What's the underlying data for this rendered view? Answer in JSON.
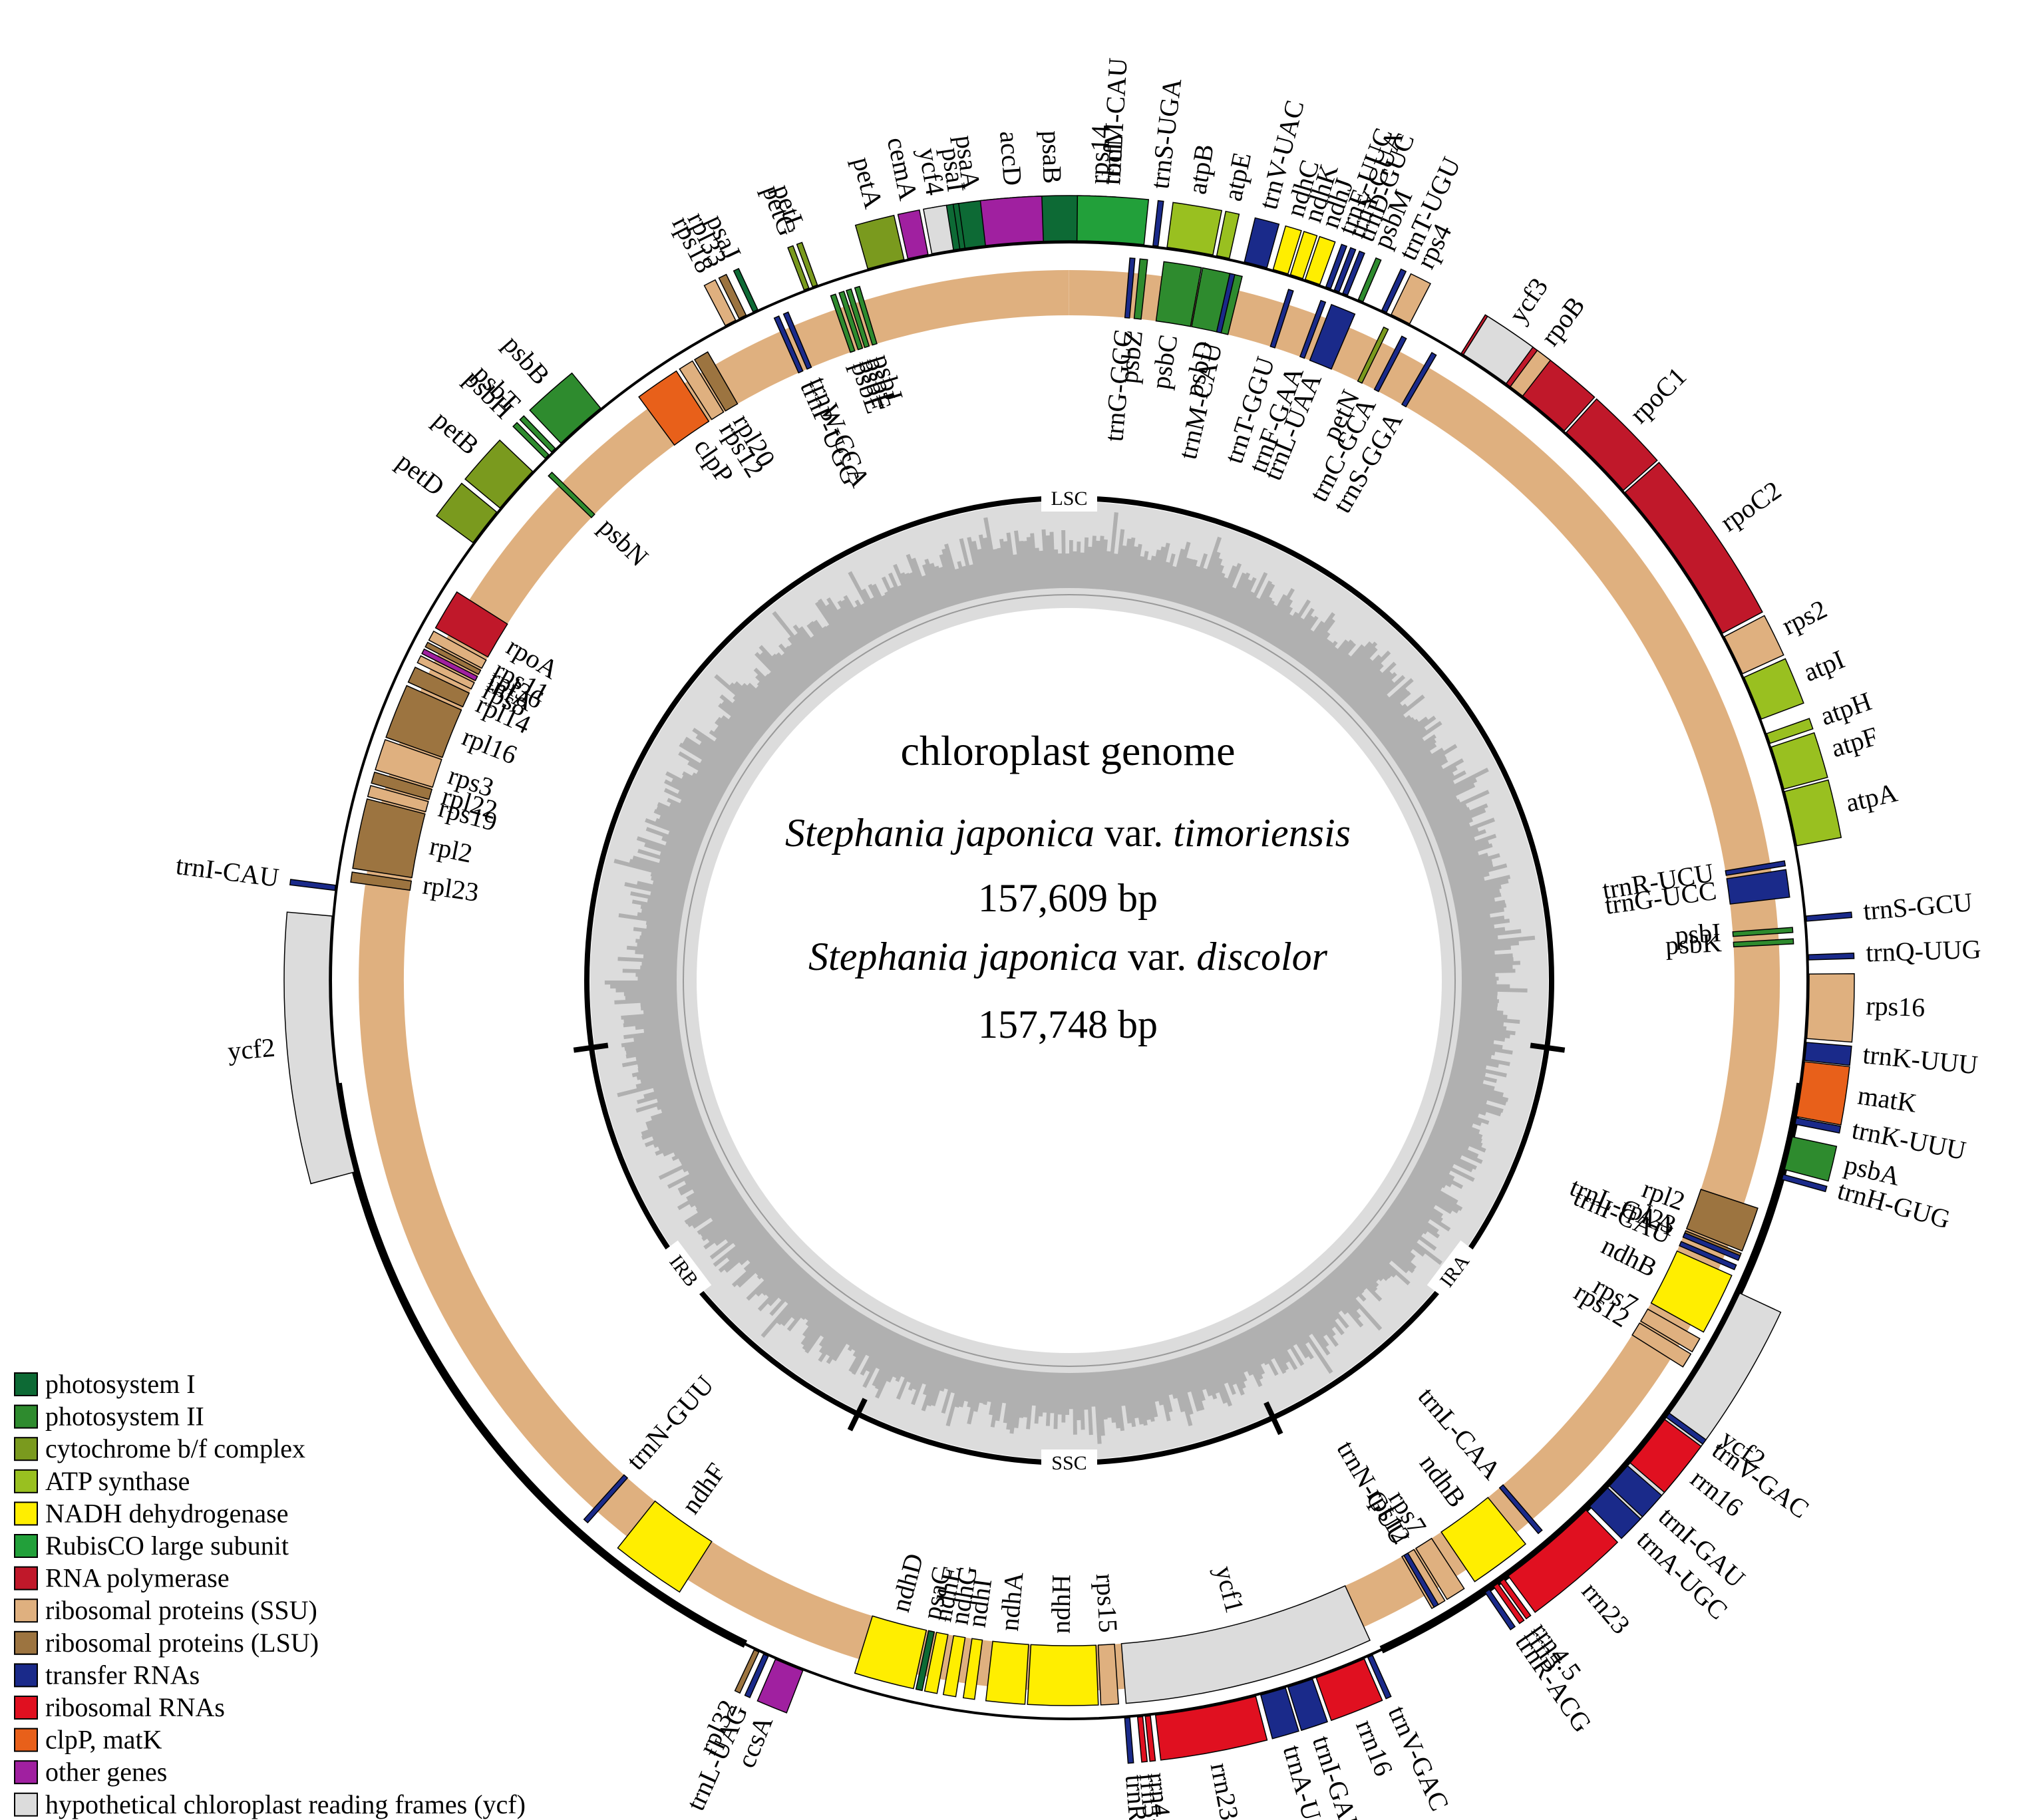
{
  "center": {
    "title": "chloroplast genome",
    "species1": {
      "genus": "Stephania japonica",
      "rank": "var.",
      "variety": "timoriensis"
    },
    "size1": "157,609 bp",
    "species2": {
      "genus": "Stephania japonica",
      "rank": "var.",
      "variety": "discolor"
    },
    "size2": "157,748 bp"
  },
  "regions": [
    {
      "id": "lsc",
      "label": "LSC",
      "angle": 0
    },
    {
      "id": "ira",
      "label": "IRA",
      "angle": 127
    },
    {
      "id": "ssc",
      "label": "SSC",
      "angle": 180
    },
    {
      "id": "irb",
      "label": "IRB",
      "angle": 233
    }
  ],
  "boundaries": [
    98,
    155,
    206,
    262
  ],
  "categories": {
    "ps1": {
      "name": "photosystem I",
      "color": "#0d6a35"
    },
    "ps2": {
      "name": "photosystem II",
      "color": "#2e8b2e"
    },
    "cyt": {
      "name": "cytochrome b/f complex",
      "color": "#7a9a1e"
    },
    "atp": {
      "name": "ATP synthase",
      "color": "#99c020"
    },
    "ndh": {
      "name": "NADH dehydrogenase",
      "color": "#ffee00"
    },
    "rbc": {
      "name": "RubisCO large subunit",
      "color": "#22a03a"
    },
    "rpo": {
      "name": "RNA polymerase",
      "color": "#c0182a"
    },
    "ssu": {
      "name": "ribosomal proteins (SSU)",
      "color": "#dfb07f"
    },
    "lsu": {
      "name": "ribosomal proteins (LSU)",
      "color": "#9c7440"
    },
    "trn": {
      "name": "transfer RNAs",
      "color": "#1a2a8a"
    },
    "rrn": {
      "name": "ribosomal RNAs",
      "color": "#e01020"
    },
    "clp": {
      "name": "clpP, matK",
      "color": "#e8601a"
    },
    "oth": {
      "name": "other genes",
      "color": "#a020a0"
    },
    "ycf": {
      "name": "hypothetical chloroplast reading frames (ycf)",
      "color": "#dcdcdc"
    }
  },
  "legend_order": [
    "ps1",
    "ps2",
    "cyt",
    "atp",
    "ndh",
    "rbc",
    "rpo",
    "ssu",
    "lsu",
    "trn",
    "rrn",
    "clp",
    "oth",
    "ycf"
  ],
  "genes": [
    {
      "name": "psaA",
      "cat": "ps1",
      "start": 350,
      "end": 355.5,
      "side": "out"
    },
    {
      "name": "psaB",
      "cat": "ps1",
      "start": 355.7,
      "end": 361.5,
      "side": "out"
    },
    {
      "name": "rps14",
      "cat": "ssu",
      "start": 361.9,
      "end": 362.7,
      "side": "out"
    },
    {
      "name": "trnfM-CAU",
      "cat": "trn",
      "start": 363.0,
      "end": 363.4,
      "side": "out"
    },
    {
      "name": "trnG-GCC",
      "cat": "trn",
      "start": 364.8,
      "end": 365.2,
      "side": "in"
    },
    {
      "name": "psbZ",
      "cat": "ps2",
      "start": 365.6,
      "end": 366.2,
      "side": "in"
    },
    {
      "name": "trnS-UGA",
      "cat": "trn",
      "start": 366.5,
      "end": 366.9,
      "side": "out"
    },
    {
      "name": "psbC",
      "cat": "ps2",
      "start": 367.5,
      "end": 370.5,
      "side": "in"
    },
    {
      "name": "psbD",
      "cat": "ps2",
      "start": 370.6,
      "end": 373.8,
      "side": "in"
    },
    {
      "name": "trnT-GGU",
      "cat": "trn",
      "start": 377.6,
      "end": 378.0,
      "side": "in"
    },
    {
      "name": "trnE-UUC",
      "cat": "trn",
      "start": 380.3,
      "end": 380.7,
      "side": "out"
    },
    {
      "name": "trnY-GUA",
      "cat": "trn",
      "start": 381.0,
      "end": 381.4,
      "side": "out"
    },
    {
      "name": "trnD-GUC",
      "cat": "trn",
      "start": 381.7,
      "end": 382.1,
      "side": "out"
    },
    {
      "name": "psbM",
      "cat": "ps2",
      "start": 383.0,
      "end": 383.4,
      "side": "out"
    },
    {
      "name": "petN",
      "cat": "cyt",
      "start": 385.7,
      "end": 386.1,
      "side": "in"
    },
    {
      "name": "trnC-GCA",
      "cat": "trn",
      "start": 387.3,
      "end": 387.7,
      "side": "in"
    },
    {
      "name": "rpoB",
      "cat": "rpo",
      "start": 392,
      "end": 402,
      "side": "out"
    },
    {
      "name": "rpoC1",
      "cat": "rpo",
      "start": 402.2,
      "end": 408.5,
      "side": "out"
    },
    {
      "name": "rpoC2",
      "cat": "rpo",
      "start": 408.7,
      "end": 422,
      "side": "out"
    },
    {
      "name": "rps2",
      "cat": "ssu",
      "start": 422.3,
      "end": 425.5,
      "side": "out"
    },
    {
      "name": "atpI",
      "cat": "atp",
      "start": 425.8,
      "end": 429.3,
      "side": "out"
    },
    {
      "name": "atpH",
      "cat": "atp",
      "start": 430.5,
      "end": 431.3,
      "side": "out"
    },
    {
      "name": "atpF",
      "cat": "atp",
      "start": 431.6,
      "end": 435,
      "side": "out"
    },
    {
      "name": "atpA",
      "cat": "atp",
      "start": 435.2,
      "end": 439.5,
      "side": "out"
    },
    {
      "name": "trnR-UCU",
      "cat": "trn",
      "start": 440.5,
      "end": 440.9,
      "side": "in"
    },
    {
      "name": "trnG-UCC",
      "cat": "trn",
      "start": 441.2,
      "end": 443.4,
      "side": "in"
    },
    {
      "name": "psbI",
      "cat": "ps2",
      "start": 445.8,
      "end": 446.2,
      "side": "in"
    },
    {
      "name": "psbK",
      "cat": "ps2",
      "start": 446.7,
      "end": 447.1,
      "side": "in"
    },
    {
      "name": "trnS-GCU",
      "cat": "trn",
      "start": 445.0,
      "end": 445.4,
      "side": "out"
    },
    {
      "name": "trnQ-UUG",
      "cat": "trn",
      "start": 448.0,
      "end": 448.4,
      "side": "out"
    },
    {
      "name": "rps16",
      "cat": "ssu",
      "start": 449.5,
      "end": 454.5,
      "side": "out"
    },
    {
      "name": "trnK-UUU",
      "cat": "trn",
      "start": 454.8,
      "end": 456.2,
      "side": "out"
    },
    {
      "name": "matK",
      "cat": "clp",
      "start": 456.3,
      "end": 460.6,
      "side": "out"
    },
    {
      "name": "trnK-UUU",
      "cat": "trn",
      "start": 460.7,
      "end": 461.2,
      "side": "out"
    },
    {
      "name": "psbA",
      "cat": "ps2",
      "start": 462.2,
      "end": 464.8,
      "side": "out"
    },
    {
      "name": "trnH-GUG",
      "cat": "trn",
      "start": 465.2,
      "end": 465.6,
      "side": "out"
    },
    {
      "name": "rpl2",
      "cat": "lsu",
      "start": 468.3,
      "end": 471.9,
      "side": "in"
    },
    {
      "name": "rpl23",
      "cat": "lsu",
      "start": 472.1,
      "end": 472.6,
      "side": "in"
    },
    {
      "name": "trnI-CAU",
      "cat": "trn",
      "start": 473.1,
      "end": 473.5,
      "side": "in"
    },
    {
      "name": "ycf2",
      "cat": "ycf",
      "start": 475,
      "end": 495,
      "side": "out"
    },
    {
      "name": "trnL-CAA",
      "cat": "trn",
      "start": 499.3,
      "end": 499.7,
      "side": "in"
    },
    {
      "name": "ndhB",
      "cat": "ndh",
      "start": 501,
      "end": 506,
      "side": "in"
    },
    {
      "name": "rps7",
      "cat": "ssu",
      "start": 507,
      "end": 508.6,
      "side": "in"
    },
    {
      "name": "rps12",
      "cat": "ssu",
      "start": 508.8,
      "end": 510,
      "side": "in"
    },
    {
      "name": "trnV-GAC",
      "cat": "trn",
      "start": 515.8,
      "end": 516.2,
      "side": "out"
    },
    {
      "name": "rrn16",
      "cat": "rrn",
      "start": 516.5,
      "end": 520.5,
      "side": "out"
    },
    {
      "name": "trnI-GAU",
      "cat": "trn",
      "start": 520.8,
      "end": 522.8,
      "side": "out"
    },
    {
      "name": "trnA-UGC",
      "cat": "trn",
      "start": 523.0,
      "end": 525.0,
      "side": "out"
    },
    {
      "name": "rrn23",
      "cat": "rrn",
      "start": 525.4,
      "end": 533.3,
      "side": "out"
    },
    {
      "name": "rrn4.5",
      "cat": "rrn",
      "start": 533.7,
      "end": 534.1,
      "side": "out"
    },
    {
      "name": "rrn5",
      "cat": "rrn",
      "start": 534.3,
      "end": 534.7,
      "side": "out"
    },
    {
      "name": "trnR-ACG",
      "cat": "trn",
      "start": 535.3,
      "end": 535.7,
      "side": "out"
    },
    {
      "name": "trnN-GUU",
      "cat": "trn",
      "start": 149.4,
      "end": 149.8,
      "side": "in"
    },
    {
      "name": "ycf1",
      "cat": "ycf",
      "start": 155.5,
      "end": 175.5,
      "side": "in"
    },
    {
      "name": "rps15",
      "cat": "ssu",
      "start": 176.1,
      "end": 177.5,
      "side": "in"
    },
    {
      "name": "ndhH",
      "cat": "ndh",
      "start": 177.7,
      "end": 183.3,
      "side": "in"
    },
    {
      "name": "ndhA",
      "cat": "ndh",
      "start": 183.5,
      "end": 186.6,
      "side": "in"
    },
    {
      "name": "ndhI",
      "cat": "ndh",
      "start": 187.5,
      "end": 188.4,
      "side": "in"
    },
    {
      "name": "ndhG",
      "cat": "ndh",
      "start": 189,
      "end": 190,
      "side": "in"
    },
    {
      "name": "ndhE",
      "cat": "ndh",
      "start": 190.5,
      "end": 191.5,
      "side": "in"
    },
    {
      "name": "psaC",
      "cat": "ps1",
      "start": 191.7,
      "end": 192.2,
      "side": "in"
    },
    {
      "name": "ndhD",
      "cat": "ndh",
      "start": 192.4,
      "end": 197.2,
      "side": "in"
    },
    {
      "name": "ccsA",
      "cat": "oth",
      "start": 201.1,
      "end": 203.4,
      "side": "out"
    },
    {
      "name": "trnL-UAG",
      "cat": "trn",
      "start": 204.0,
      "end": 204.4,
      "side": "out"
    },
    {
      "name": "rpl32",
      "cat": "lsu",
      "start": 204.8,
      "end": 205.2,
      "side": "out"
    },
    {
      "name": "ndhF",
      "cat": "ndh",
      "start": 212.5,
      "end": 218.5,
      "side": "in"
    },
    {
      "name": "trnN-GUU",
      "cat": "trn",
      "start": 221.6,
      "end": 222.0,
      "side": "in"
    },
    {
      "name": "trnR-ACG",
      "cat": "trn",
      "start": 145.4,
      "end": 145.8,
      "side": "out"
    },
    {
      "name": "rrn5",
      "cat": "rrn",
      "start": 144.6,
      "end": 145.0,
      "side": "out"
    },
    {
      "name": "rrn4.5",
      "cat": "rrn",
      "start": 144.0,
      "end": 144.4,
      "side": "out"
    },
    {
      "name": "rrn23",
      "cat": "rrn",
      "start": 135.7,
      "end": 143.6,
      "side": "out"
    },
    {
      "name": "trnA-UGC",
      "cat": "trn",
      "start": 133.3,
      "end": 135.3,
      "side": "out"
    },
    {
      "name": "trnI-GAU",
      "cat": "trn",
      "start": 131.0,
      "end": 133.1,
      "side": "out"
    },
    {
      "name": "rrn16",
      "cat": "rrn",
      "start": 126.4,
      "end": 130.7,
      "side": "out"
    },
    {
      "name": "trnV-GAC",
      "cat": "trn",
      "start": 125.8,
      "end": 126.2,
      "side": "out"
    },
    {
      "name": "rps12",
      "cat": "ssu",
      "start": 121,
      "end": 122.2,
      "side": "in"
    },
    {
      "name": "rps7",
      "cat": "ssu",
      "start": 119.6,
      "end": 120.8,
      "side": "in"
    },
    {
      "name": "ndhB",
      "cat": "ndh",
      "start": 114,
      "end": 119,
      "side": "in"
    },
    {
      "name": "trnL-CAA",
      "cat": "trn",
      "start": 112.3,
      "end": 112.7,
      "side": "in"
    },
    {
      "name": "ycf2",
      "cat": "ycf",
      "start": 255,
      "end": 275,
      "side": "out"
    },
    {
      "name": "trnI-CAU",
      "cat": "trn",
      "start": 277.0,
      "end": 277.4,
      "side": "out"
    },
    {
      "name": "rpl23",
      "cat": "lsu",
      "start": 277.8,
      "end": 278.6,
      "side": "in"
    },
    {
      "name": "rpl2",
      "cat": "lsu",
      "start": 278.9,
      "end": 284.5,
      "side": "in"
    },
    {
      "name": "rps19",
      "cat": "ssu",
      "start": 284.7,
      "end": 285.6,
      "side": "in"
    },
    {
      "name": "rpl22",
      "cat": "lsu",
      "start": 285.8,
      "end": 286.7,
      "side": "in"
    },
    {
      "name": "rps3",
      "cat": "ssu",
      "start": 286.9,
      "end": 289.4,
      "side": "in"
    },
    {
      "name": "rpl16",
      "cat": "lsu",
      "start": 289.6,
      "end": 294.0,
      "side": "in"
    },
    {
      "name": "rpl14",
      "cat": "lsu",
      "start": 294.3,
      "end": 295.6,
      "side": "in"
    },
    {
      "name": "rps8",
      "cat": "ssu",
      "start": 296.0,
      "end": 296.6,
      "side": "in"
    },
    {
      "name": "infA",
      "cat": "oth",
      "start": 296.8,
      "end": 297.2,
      "side": "in"
    },
    {
      "name": "rpl36",
      "cat": "lsu",
      "start": 297.4,
      "end": 297.8,
      "side": "in"
    },
    {
      "name": "rps11",
      "cat": "ssu",
      "start": 298.0,
      "end": 298.8,
      "side": "in"
    },
    {
      "name": "rpoA",
      "cat": "rpo",
      "start": 299.1,
      "end": 302.4,
      "side": "in"
    },
    {
      "name": "petD",
      "cat": "cyt",
      "start": 306.3,
      "end": 309.3,
      "side": "out"
    },
    {
      "name": "petB",
      "cat": "cyt",
      "start": 309.7,
      "end": 313.5,
      "side": "out"
    },
    {
      "name": "psbN",
      "cat": "ps2",
      "start": 314.1,
      "end": 314.5,
      "side": "in"
    },
    {
      "name": "psbH",
      "cat": "ps2",
      "start": 314.9,
      "end": 315.3,
      "side": "out"
    },
    {
      "name": "psbT",
      "cat": "ps2",
      "start": 315.6,
      "end": 316.0,
      "side": "out"
    },
    {
      "name": "psbB",
      "cat": "ps2",
      "start": 316.6,
      "end": 320.7,
      "side": "out"
    },
    {
      "name": "clpP",
      "cat": "clp",
      "start": 323.6,
      "end": 327.2,
      "side": "in"
    },
    {
      "name": "rps12",
      "cat": "ssu",
      "start": 327.5,
      "end": 328.7,
      "side": "in"
    },
    {
      "name": "rpl20",
      "cat": "lsu",
      "start": 328.9,
      "end": 330.1,
      "side": "in"
    },
    {
      "name": "rps18",
      "cat": "ssu",
      "start": 332.3,
      "end": 333.2,
      "side": "out"
    },
    {
      "name": "rpl33",
      "cat": "lsu",
      "start": 333.5,
      "end": 334.1,
      "side": "out"
    },
    {
      "name": "psaJ",
      "cat": "ps1",
      "start": 334.7,
      "end": 335.1,
      "side": "out"
    },
    {
      "name": "trnP-UGG",
      "cat": "trn",
      "start": 336.0,
      "end": 336.4,
      "side": "in"
    },
    {
      "name": "trnW-CCA",
      "cat": "trn",
      "start": 336.8,
      "end": 337.2,
      "side": "in"
    },
    {
      "name": "petG",
      "cat": "cyt",
      "start": 339.0,
      "end": 339.4,
      "side": "out"
    },
    {
      "name": "petL",
      "cat": "cyt",
      "start": 339.7,
      "end": 340.1,
      "side": "out"
    },
    {
      "name": "psbE",
      "cat": "ps2",
      "start": 340.8,
      "end": 341.2,
      "side": "in"
    },
    {
      "name": "psbF",
      "cat": "ps2",
      "start": 341.5,
      "end": 341.9,
      "side": "in"
    },
    {
      "name": "psbL",
      "cat": "ps2",
      "start": 342.1,
      "end": 342.5,
      "side": "in"
    },
    {
      "name": "psbJ",
      "cat": "ps2",
      "start": 342.8,
      "end": 343.2,
      "side": "in"
    },
    {
      "name": "petA",
      "cat": "cyt",
      "start": 344.2,
      "end": 347.1,
      "side": "out"
    },
    {
      "name": "cemA",
      "cat": "oth",
      "start": 347.4,
      "end": 349.0,
      "side": "out"
    },
    {
      "name": "ycf4",
      "cat": "ycf",
      "start": 349.3,
      "end": 351.0,
      "side": "out"
    },
    {
      "name": "psaI",
      "cat": "ps1",
      "start": 351.5,
      "end": 351.9,
      "side": "out"
    },
    {
      "name": "accD",
      "cat": "oth",
      "start": 353.5,
      "end": 358.0,
      "side": "out"
    },
    {
      "name": "rbcL",
      "cat": "rbc",
      "start": 360.6,
      "end": 365.8,
      "side": "out"
    },
    {
      "name": "atpB",
      "cat": "atp",
      "start": 367.6,
      "end": 371.2,
      "side": "out"
    },
    {
      "name": "atpE",
      "cat": "atp",
      "start": 371.5,
      "end": 372.5,
      "side": "out"
    },
    {
      "name": "trnM-CAU",
      "cat": "trn",
      "start": 372.8,
      "end": 373.2,
      "side": "in"
    },
    {
      "name": "trnV-UAC",
      "cat": "trn",
      "start": 373.7,
      "end": 375.5,
      "side": "out"
    },
    {
      "name": "ndhC",
      "cat": "ndh",
      "start": 376.0,
      "end": 377.2,
      "side": "out"
    },
    {
      "name": "ndhK",
      "cat": "ndh",
      "start": 377.4,
      "end": 378.4,
      "side": "out"
    },
    {
      "name": "ndhJ",
      "cat": "ndh",
      "start": 378.6,
      "end": 379.8,
      "side": "out"
    },
    {
      "name": "trnF-GAA",
      "cat": "trn",
      "start": 380.3,
      "end": 380.7,
      "side": "in"
    },
    {
      "name": "trnL-UAA",
      "cat": "trn",
      "start": 381.2,
      "end": 383.2,
      "side": "in"
    },
    {
      "name": "trnT-UGU",
      "cat": "trn",
      "start": 385.0,
      "end": 385.4,
      "side": "out"
    },
    {
      "name": "rps4",
      "cat": "ssu",
      "start": 385.8,
      "end": 387.4,
      "side": "out"
    },
    {
      "name": "trnS-GGA",
      "cat": "trn",
      "start": 390.0,
      "end": 390.4,
      "side": "in"
    },
    {
      "name": "ycf3",
      "cat": "ycf",
      "start": 392.2,
      "end": 396.2,
      "side": "out"
    },
    {
      "name": "",
      "cat": "ssu",
      "start": 396.6,
      "end": 397.8,
      "side": "out"
    }
  ]
}
